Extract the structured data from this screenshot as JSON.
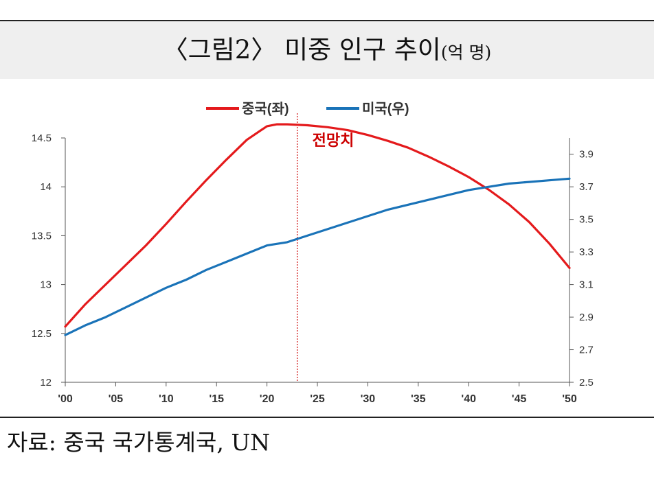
{
  "title": {
    "main": "〈그림2〉 미중 인구 추이",
    "unit": "(억 명)"
  },
  "source": "자료: 중국 국가통계국, UN",
  "colors": {
    "china": "#e41a1c",
    "usa": "#1a73b8",
    "forecast_line": "#cc0000"
  },
  "chart_data": {
    "type": "line",
    "x_tick_labels": [
      "'00",
      "'05",
      "'10",
      "'15",
      "'20",
      "'25",
      "'30",
      "'35",
      "'40",
      "'45",
      "'50"
    ],
    "y_left": {
      "ticks": [
        "12",
        "12.5",
        "13",
        "13.5",
        "14",
        "14.5"
      ],
      "ylim": [
        12,
        14.5
      ]
    },
    "y_right": {
      "ticks": [
        "2.5",
        "2.7",
        "2.9",
        "3.1",
        "3.3",
        "3.5",
        "3.7",
        "3.9"
      ],
      "ylim": [
        2.5,
        4.0
      ]
    },
    "xlim": [
      2000,
      2050
    ],
    "forecast_start_year": 2023,
    "annotation": "전망치",
    "series": [
      {
        "name": "중국(좌)",
        "axis": "left",
        "color": "#e41a1c",
        "points": [
          [
            2000,
            12.57
          ],
          [
            2002,
            12.8
          ],
          [
            2004,
            13.0
          ],
          [
            2006,
            13.2
          ],
          [
            2008,
            13.4
          ],
          [
            2010,
            13.62
          ],
          [
            2012,
            13.85
          ],
          [
            2014,
            14.07
          ],
          [
            2016,
            14.28
          ],
          [
            2018,
            14.48
          ],
          [
            2020,
            14.62
          ],
          [
            2021,
            14.64
          ],
          [
            2022,
            14.64
          ],
          [
            2024,
            14.63
          ],
          [
            2026,
            14.61
          ],
          [
            2028,
            14.58
          ],
          [
            2030,
            14.53
          ],
          [
            2032,
            14.47
          ],
          [
            2034,
            14.4
          ],
          [
            2036,
            14.31
          ],
          [
            2038,
            14.21
          ],
          [
            2040,
            14.1
          ],
          [
            2042,
            13.97
          ],
          [
            2044,
            13.82
          ],
          [
            2046,
            13.64
          ],
          [
            2048,
            13.42
          ],
          [
            2050,
            13.17
          ]
        ]
      },
      {
        "name": "미국(우)",
        "axis": "right",
        "color": "#1a73b8",
        "points": [
          [
            2000,
            2.79
          ],
          [
            2002,
            2.85
          ],
          [
            2004,
            2.9
          ],
          [
            2006,
            2.96
          ],
          [
            2008,
            3.02
          ],
          [
            2010,
            3.08
          ],
          [
            2012,
            3.13
          ],
          [
            2014,
            3.19
          ],
          [
            2016,
            3.24
          ],
          [
            2018,
            3.29
          ],
          [
            2020,
            3.34
          ],
          [
            2022,
            3.36
          ],
          [
            2024,
            3.4
          ],
          [
            2026,
            3.44
          ],
          [
            2028,
            3.48
          ],
          [
            2030,
            3.52
          ],
          [
            2032,
            3.56
          ],
          [
            2034,
            3.59
          ],
          [
            2036,
            3.62
          ],
          [
            2038,
            3.65
          ],
          [
            2040,
            3.68
          ],
          [
            2042,
            3.7
          ],
          [
            2044,
            3.72
          ],
          [
            2046,
            3.73
          ],
          [
            2048,
            3.74
          ],
          [
            2050,
            3.75
          ]
        ]
      }
    ]
  }
}
